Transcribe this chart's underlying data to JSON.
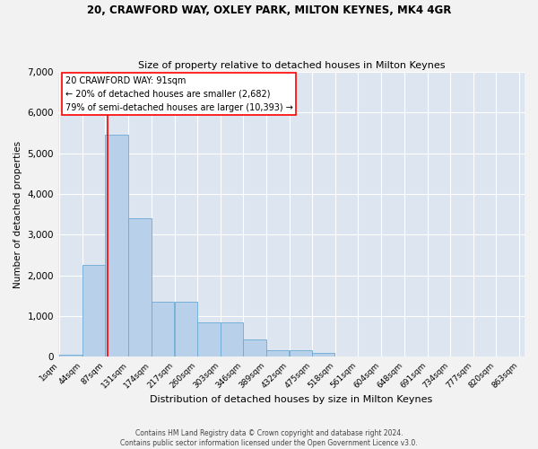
{
  "title1": "20, CRAWFORD WAY, OXLEY PARK, MILTON KEYNES, MK4 4GR",
  "title2": "Size of property relative to detached houses in Milton Keynes",
  "xlabel": "Distribution of detached houses by size in Milton Keynes",
  "ylabel": "Number of detached properties",
  "bin_edges": [
    1,
    44,
    87,
    131,
    174,
    217,
    260,
    303,
    346,
    389,
    432,
    475,
    518,
    561,
    604,
    648,
    691,
    734,
    777,
    820,
    863
  ],
  "bar_heights": [
    50,
    2250,
    5450,
    3400,
    1350,
    1350,
    850,
    850,
    420,
    170,
    160,
    90,
    5,
    3,
    2,
    1,
    1,
    0,
    0,
    0
  ],
  "bar_color": "#b8d0ea",
  "bar_edge_color": "#6aaad4",
  "red_line_x": 91,
  "red_line_label": "20 CRAWFORD WAY: 91sqm",
  "annotation_line1": "← 20% of detached houses are smaller (2,682)",
  "annotation_line2": "79% of semi-detached houses are larger (10,393) →",
  "ylim": [
    0,
    7000
  ],
  "yticks": [
    0,
    1000,
    2000,
    3000,
    4000,
    5000,
    6000,
    7000
  ],
  "background_color": "#dde6f0",
  "grid_color": "#ffffff",
  "footer1": "Contains HM Land Registry data © Crown copyright and database right 2024.",
  "footer2": "Contains public sector information licensed under the Open Government Licence v3.0."
}
